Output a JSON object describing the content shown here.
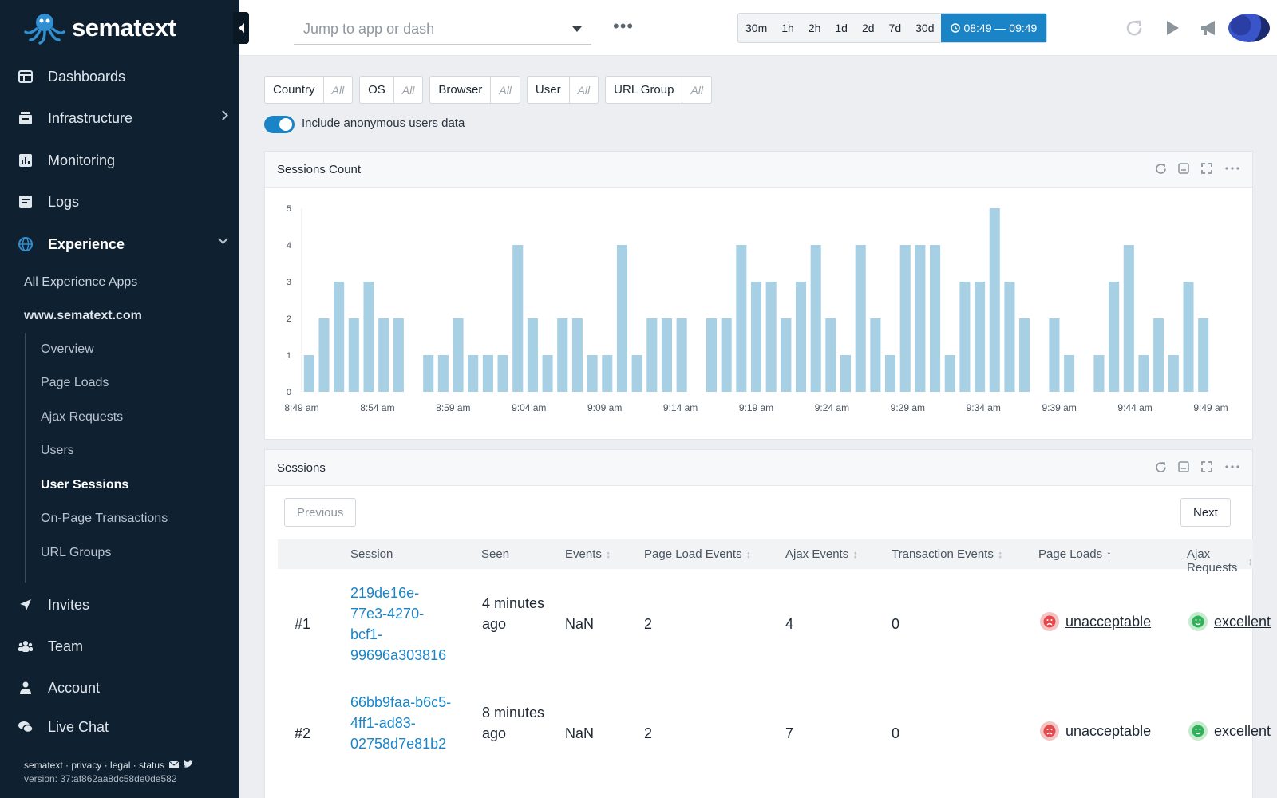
{
  "brand": {
    "name": "sematext"
  },
  "sidebar": {
    "items": [
      {
        "label": "Dashboards",
        "icon": "dashboard-icon"
      },
      {
        "label": "Infrastructure",
        "icon": "server-icon"
      },
      {
        "label": "Monitoring",
        "icon": "bar-chart-icon"
      },
      {
        "label": "Logs",
        "icon": "logs-icon"
      },
      {
        "label": "Experience",
        "icon": "globe-icon"
      }
    ],
    "experience_sub": {
      "all_apps": "All Experience Apps",
      "site": "www.sematext.com"
    },
    "site_items": [
      "Overview",
      "Page Loads",
      "Ajax Requests",
      "Users",
      "User Sessions",
      "On-Page Transactions",
      "URL Groups"
    ],
    "bottom_items": [
      {
        "label": "Invites",
        "icon": "paper-plane-icon"
      },
      {
        "label": "Team",
        "icon": "team-icon"
      },
      {
        "label": "Account",
        "icon": "user-icon"
      },
      {
        "label": "Live Chat",
        "icon": "chat-icon"
      }
    ],
    "footer": {
      "links": "sematext · privacy · legal · status",
      "version": "version: 37:af862aa8dc58de0de582"
    }
  },
  "topbar": {
    "jump_placeholder": "Jump to app or dash",
    "more": "•••",
    "time_buttons": [
      "30m",
      "1h",
      "2h",
      "1d",
      "2d",
      "7d",
      "30d"
    ],
    "range": "08:49 — 09:49"
  },
  "filters": [
    {
      "label": "Country",
      "value": "All"
    },
    {
      "label": "OS",
      "value": "All"
    },
    {
      "label": "Browser",
      "value": "All"
    },
    {
      "label": "User",
      "value": "All"
    },
    {
      "label": "URL Group",
      "value": "All"
    }
  ],
  "anonymous_toggle": {
    "label": "Include anonymous users data",
    "on": true
  },
  "chart_panel": {
    "title": "Sessions Count"
  },
  "chart_data": {
    "type": "bar",
    "title": "Sessions Count",
    "xlabel": "",
    "ylabel": "",
    "ylim": [
      0,
      5
    ],
    "yticks": [
      0,
      1,
      2,
      3,
      4,
      5
    ],
    "x_tick_labels": [
      "8:49 am",
      "8:54 am",
      "8:59 am",
      "9:04 am",
      "9:09 am",
      "9:14 am",
      "9:19 am",
      "9:24 am",
      "9:29 am",
      "9:34 am",
      "9:39 am",
      "9:44 am",
      "9:49 am"
    ],
    "values": [
      1,
      2,
      3,
      2,
      3,
      2,
      2,
      0,
      1,
      1,
      2,
      1,
      1,
      1,
      4,
      2,
      1,
      2,
      2,
      1,
      1,
      4,
      1,
      2,
      2,
      2,
      0,
      2,
      2,
      4,
      3,
      3,
      2,
      3,
      4,
      2,
      1,
      4,
      2,
      1,
      4,
      4,
      4,
      1,
      3,
      3,
      5,
      3,
      2,
      0,
      2,
      1,
      0,
      1,
      3,
      4,
      1,
      2,
      1,
      3,
      2
    ],
    "color": "#a7d0e4"
  },
  "sessions_panel": {
    "title": "Sessions",
    "prev": "Previous",
    "next": "Next",
    "columns": [
      "Session",
      "Seen",
      "Events",
      "Page Load Events",
      "Ajax Events",
      "Transaction Events",
      "Page Loads",
      "Ajax Requests"
    ],
    "rows": [
      {
        "rank": "#1",
        "session": "219de16e-77e3-4270-bcf1-99696a303816",
        "seen": "4 minutes ago",
        "events": "NaN",
        "page_load_events": "2",
        "ajax_events": "4",
        "transaction_events": "0",
        "page_loads": "unacceptable",
        "ajax_requests": "excellent"
      },
      {
        "rank": "#2",
        "session": "66bb9faa-b6c5-4ff1-ad83-02758d7e81b2",
        "seen": "8 minutes ago",
        "events": "NaN",
        "page_load_events": "2",
        "ajax_events": "7",
        "transaction_events": "0",
        "page_loads": "unacceptable",
        "ajax_requests": "excellent"
      }
    ]
  },
  "colors": {
    "sidebar_bg": "#0f2030",
    "accent": "#1a84c6",
    "bar": "#a7d0e4"
  }
}
